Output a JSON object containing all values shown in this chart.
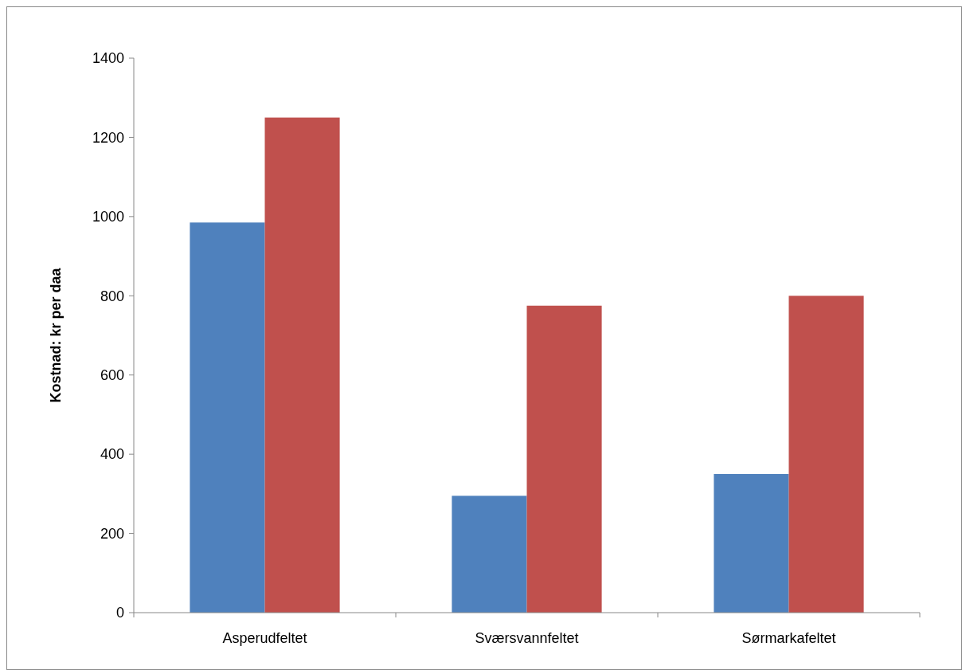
{
  "chart_data": {
    "type": "bar",
    "ylabel": "Kostnad: kr per daa",
    "categories": [
      "Asperudfeltet",
      "Sværsvannfeltet",
      "Sørmarkafeltet"
    ],
    "series": [
      {
        "color": "#4f81bd",
        "values": [
          985,
          295,
          350
        ]
      },
      {
        "color": "#c0504d",
        "values": [
          1250,
          775,
          800
        ]
      }
    ],
    "ylim": [
      0,
      1400
    ],
    "yticks": [
      0,
      200,
      400,
      600,
      800,
      1000,
      1200,
      1400
    ],
    "grid": false
  }
}
